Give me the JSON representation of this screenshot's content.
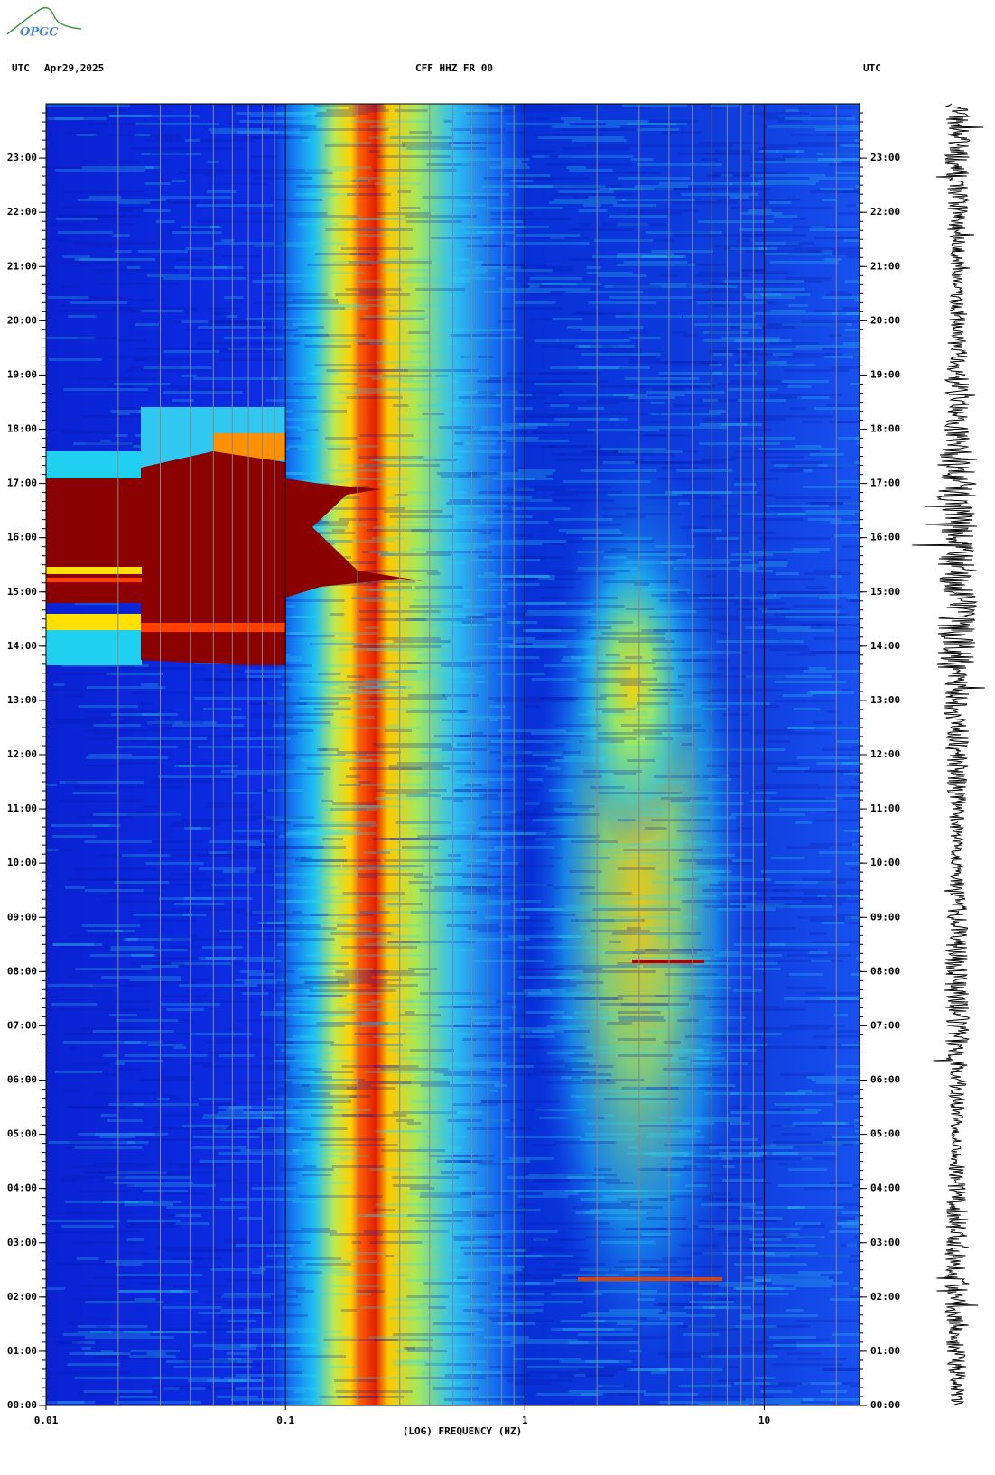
{
  "logo": "OPGC",
  "chart_data": {
    "type": "spectrogram",
    "title": "CFF HHZ FR 00",
    "date": "Apr29,2025",
    "y_label_left": "UTC",
    "y_label_right": "UTC",
    "x_label": "(LOG) FREQUENCY (HZ)",
    "xscale": "log",
    "xlim": [
      0.01,
      25
    ],
    "xticks": [
      0.01,
      0.1,
      1,
      10
    ],
    "xminor": [
      0.02,
      0.03,
      0.04,
      0.05,
      0.06,
      0.07,
      0.08,
      0.09,
      0.2,
      0.3,
      0.4,
      0.5,
      0.6,
      0.7,
      0.8,
      0.9,
      2,
      3,
      4,
      5,
      6,
      7,
      8,
      9,
      20
    ],
    "ylim": [
      0,
      24
    ],
    "yticks": [
      {
        "value": 0,
        "label": "00:00"
      },
      {
        "value": 1,
        "label": "01:00"
      },
      {
        "value": 2,
        "label": "02:00"
      },
      {
        "value": 3,
        "label": "03:00"
      },
      {
        "value": 4,
        "label": "04:00"
      },
      {
        "value": 5,
        "label": "05:00"
      },
      {
        "value": 6,
        "label": "06:00"
      },
      {
        "value": 7,
        "label": "07:00"
      },
      {
        "value": 8,
        "label": "08:00"
      },
      {
        "value": 9,
        "label": "09:00"
      },
      {
        "value": 10,
        "label": "10:00"
      },
      {
        "value": 11,
        "label": "11:00"
      },
      {
        "value": 12,
        "label": "12:00"
      },
      {
        "value": 13,
        "label": "13:00"
      },
      {
        "value": 14,
        "label": "14:00"
      },
      {
        "value": 15,
        "label": "15:00"
      },
      {
        "value": 16,
        "label": "16:00"
      },
      {
        "value": 17,
        "label": "17:00"
      },
      {
        "value": 18,
        "label": "18:00"
      },
      {
        "value": 19,
        "label": "19:00"
      },
      {
        "value": 20,
        "label": "20:00"
      },
      {
        "value": 21,
        "label": "21:00"
      },
      {
        "value": 22,
        "label": "22:00"
      },
      {
        "value": 23,
        "label": "23:00"
      }
    ]
  }
}
